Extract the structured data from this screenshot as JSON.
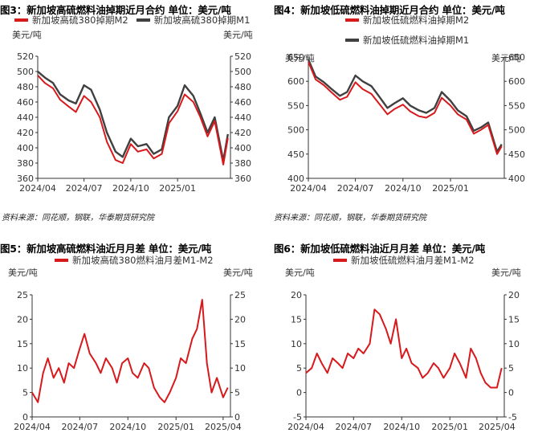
{
  "colors": {
    "red": "#d7191c",
    "dark": "#404040",
    "axis": "#333333"
  },
  "charts": [
    {
      "title": "图3：新加坡高硫燃料油掉期近月合约  单位：美元/吨",
      "legend": [
        {
          "name": "新加坡高硫380掉期M2",
          "color": "#d7191c"
        },
        {
          "name": "新加坡高硫380掉期M1",
          "color": "#404040"
        }
      ],
      "unit_left": "美元/吨",
      "unit_right": "美元/吨",
      "source": "资料来源：同花顺，钢联，华泰期货研究院"
    },
    {
      "title": "图4：新加坡低硫燃料油掉期近月合约  单位：美元/吨",
      "legend": [
        {
          "name": "新加坡低硫燃料油掉期M2",
          "color": "#d7191c"
        },
        {
          "name": "新加坡低硫燃料油掉期M1",
          "color": "#404040"
        }
      ],
      "unit_left": "美元/吨",
      "unit_right": "美元/吨",
      "source": "资料来源：同花顺，钢联，华泰期货研究院"
    },
    {
      "title": "图5：新加坡高硫燃料油近月月差  单位：美元/吨",
      "legend": [
        {
          "name": "新加坡高硫380燃料油月差M1-M2",
          "color": "#d7191c"
        }
      ],
      "unit_left": "美元/吨",
      "unit_right": "美元/吨"
    },
    {
      "title": "图6：新加坡低硫燃料油近月月差  单位：美元/吨",
      "legend": [
        {
          "name": "新加坡低硫燃料油月差M1-M2",
          "color": "#d7191c"
        }
      ],
      "unit_left": "美元/吨",
      "unit_right": "美元/吨"
    }
  ],
  "chart_data": [
    {
      "type": "line",
      "title": "图3：新加坡高硫燃料油掉期近月合约  单位：美元/吨",
      "ylabel": "美元/吨",
      "ylim": [
        360,
        520
      ],
      "yticks": [
        360,
        380,
        400,
        420,
        440,
        460,
        480,
        500,
        520
      ],
      "xlim": [
        "2024-04-01",
        "2025-04-15"
      ],
      "xticks": [
        "2024/04",
        "2024/07",
        "2024/10",
        "2025/01"
      ],
      "x": [
        "2024-04-01",
        "2024-04-15",
        "2024-05-01",
        "2024-05-15",
        "2024-06-01",
        "2024-06-15",
        "2024-07-01",
        "2024-07-15",
        "2024-08-01",
        "2024-08-15",
        "2024-09-01",
        "2024-09-15",
        "2024-10-01",
        "2024-10-15",
        "2024-11-01",
        "2024-11-15",
        "2024-12-01",
        "2024-12-15",
        "2025-01-01",
        "2025-01-15",
        "2025-02-01",
        "2025-02-15",
        "2025-03-01",
        "2025-03-15",
        "2025-04-01",
        "2025-04-10"
      ],
      "series": [
        {
          "name": "新加坡高硫380掉期M1",
          "values": [
            500,
            492,
            485,
            470,
            462,
            458,
            482,
            476,
            450,
            420,
            395,
            388,
            412,
            402,
            405,
            392,
            398,
            440,
            455,
            482,
            468,
            445,
            420,
            440,
            383,
            418
          ]
        },
        {
          "name": "新加坡高硫380掉期M2",
          "values": [
            495,
            485,
            478,
            463,
            454,
            447,
            468,
            460,
            440,
            408,
            384,
            380,
            405,
            395,
            398,
            386,
            392,
            432,
            448,
            470,
            460,
            440,
            415,
            435,
            378,
            413
          ]
        }
      ]
    },
    {
      "type": "line",
      "title": "图4：新加坡低硫燃料油掉期近月合约  单位：美元/吨",
      "ylabel": "美元/吨",
      "ylim": [
        400,
        650
      ],
      "yticks": [
        400,
        450,
        500,
        550,
        600,
        650
      ],
      "xlim": [
        "2024-04-01",
        "2025-04-15"
      ],
      "xticks": [
        "2024/04",
        "2024/07",
        "2024/10",
        "2025/01"
      ],
      "x": [
        "2024-04-01",
        "2024-04-15",
        "2024-05-01",
        "2024-05-15",
        "2024-06-01",
        "2024-06-15",
        "2024-07-01",
        "2024-07-15",
        "2024-08-01",
        "2024-08-15",
        "2024-09-01",
        "2024-09-15",
        "2024-10-01",
        "2024-10-15",
        "2024-11-01",
        "2024-11-15",
        "2024-12-01",
        "2024-12-15",
        "2025-01-01",
        "2025-01-15",
        "2025-02-01",
        "2025-02-15",
        "2025-03-01",
        "2025-03-15",
        "2025-04-01",
        "2025-04-10"
      ],
      "series": [
        {
          "name": "新加坡低硫燃料油掉期M1",
          "values": [
            645,
            610,
            598,
            585,
            570,
            578,
            612,
            600,
            590,
            570,
            545,
            555,
            565,
            550,
            540,
            535,
            545,
            578,
            560,
            540,
            528,
            498,
            505,
            515,
            455,
            470
          ]
        },
        {
          "name": "新加坡低硫燃料油掉期M2",
          "values": [
            640,
            604,
            592,
            578,
            562,
            568,
            598,
            584,
            574,
            555,
            532,
            543,
            552,
            538,
            528,
            525,
            535,
            566,
            550,
            532,
            521,
            492,
            500,
            510,
            450,
            466
          ]
        }
      ]
    },
    {
      "type": "line",
      "title": "图5：新加坡高硫燃料油近月月差  单位：美元/吨",
      "ylabel": "美元/吨",
      "ylim": [
        0,
        25
      ],
      "yticks": [
        0,
        5,
        10,
        15,
        20,
        25
      ],
      "xlim": [
        "2024-04-01",
        "2025-04-15"
      ],
      "xticks": [
        "2024/04",
        "2024/07",
        "2024/10",
        "2025/01",
        "2025/04"
      ],
      "series": [
        {
          "name": "新加坡高硫380燃料油月差M1-M2",
          "x": [
            "2024-04-01",
            "2024-04-12",
            "2024-04-22",
            "2024-05-01",
            "2024-05-12",
            "2024-05-22",
            "2024-06-01",
            "2024-06-10",
            "2024-06-20",
            "2024-07-01",
            "2024-07-10",
            "2024-07-20",
            "2024-08-01",
            "2024-08-10",
            "2024-08-20",
            "2024-09-01",
            "2024-09-10",
            "2024-09-20",
            "2024-10-01",
            "2024-10-10",
            "2024-10-20",
            "2024-11-01",
            "2024-11-10",
            "2024-11-20",
            "2024-12-01",
            "2024-12-10",
            "2024-12-20",
            "2025-01-01",
            "2025-01-10",
            "2025-01-20",
            "2025-02-01",
            "2025-02-10",
            "2025-02-20",
            "2025-03-01",
            "2025-03-10",
            "2025-03-20",
            "2025-04-01",
            "2025-04-10"
          ],
          "values": [
            5,
            3,
            9,
            12,
            8,
            10,
            7,
            11,
            10,
            14,
            17,
            13,
            11,
            9,
            12,
            10,
            7,
            11,
            12,
            9,
            8,
            11,
            10,
            6,
            4,
            3,
            5,
            8,
            12,
            11,
            16,
            18,
            24,
            11,
            5,
            8,
            4,
            6
          ]
        }
      ]
    },
    {
      "type": "line",
      "title": "图6：新加坡低硫燃料油近月月差  单位：美元/吨",
      "ylabel": "美元/吨",
      "ylim": [
        -5,
        20
      ],
      "yticks": [
        -5,
        0,
        5,
        10,
        15,
        20
      ],
      "xlim": [
        "2024-04-01",
        "2025-04-15"
      ],
      "xticks": [
        "2024/04",
        "2024/07",
        "2024/10",
        "2025/01",
        "2025/04"
      ],
      "series": [
        {
          "name": "新加坡低硫燃料油月差M1-M2",
          "x": [
            "2024-04-01",
            "2024-04-12",
            "2024-04-22",
            "2024-05-01",
            "2024-05-12",
            "2024-05-22",
            "2024-06-01",
            "2024-06-10",
            "2024-06-20",
            "2024-07-01",
            "2024-07-10",
            "2024-07-20",
            "2024-08-01",
            "2024-08-10",
            "2024-08-20",
            "2024-09-01",
            "2024-09-10",
            "2024-09-20",
            "2024-10-01",
            "2024-10-10",
            "2024-10-20",
            "2024-11-01",
            "2024-11-10",
            "2024-11-20",
            "2024-12-01",
            "2024-12-10",
            "2024-12-20",
            "2025-01-01",
            "2025-01-10",
            "2025-01-20",
            "2025-02-01",
            "2025-02-10",
            "2025-02-20",
            "2025-03-01",
            "2025-03-10",
            "2025-03-20",
            "2025-04-01",
            "2025-04-10"
          ],
          "values": [
            4,
            5,
            8,
            6,
            4,
            7,
            6,
            5,
            8,
            7,
            9,
            8,
            10,
            17,
            16,
            13,
            10,
            15,
            7,
            9,
            6,
            5,
            3,
            4,
            6,
            5,
            3,
            5,
            8,
            6,
            3,
            9,
            7,
            4,
            2,
            1,
            1,
            5
          ]
        }
      ]
    }
  ]
}
